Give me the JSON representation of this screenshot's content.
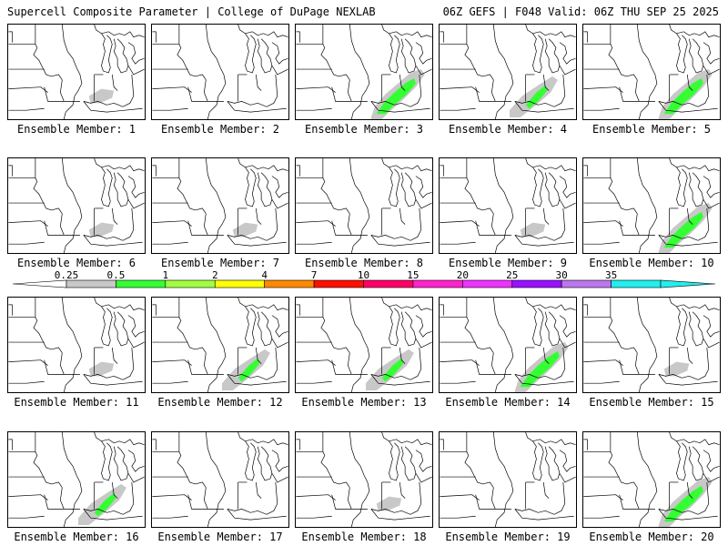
{
  "header": {
    "left": "Supercell Composite Parameter | College of DuPage NEXLAB",
    "right": "06Z GEFS | F048 Valid: 06Z THU SEP 25 2025"
  },
  "colors": {
    "line": "#000000",
    "gray_fill": "#c8c8c8",
    "green_fill": "#33ff33"
  },
  "colorbar": {
    "labels": [
      "0.25",
      "0.5",
      "1",
      "2",
      "4",
      "7",
      "10",
      "15",
      "20",
      "25",
      "30",
      "35"
    ],
    "colors": [
      "#c8c8c8",
      "#33ff33",
      "#a0ff40",
      "#ffff00",
      "#ff8800",
      "#ff1100",
      "#ff0066",
      "#ff22cc",
      "#ee33ff",
      "#9911ff",
      "#bb77ee",
      "#22eeee"
    ]
  },
  "panels": [
    {
      "label": "Ensemble Member: 1",
      "icon": "map-member-1",
      "intensity": "weak"
    },
    {
      "label": "Ensemble Member: 2",
      "icon": "map-member-2",
      "intensity": "none"
    },
    {
      "label": "Ensemble Member: 3",
      "icon": "map-member-3",
      "intensity": "strong"
    },
    {
      "label": "Ensemble Member: 4",
      "icon": "map-member-4",
      "intensity": "moderate"
    },
    {
      "label": "Ensemble Member: 5",
      "icon": "map-member-5",
      "intensity": "strong"
    },
    {
      "label": "Ensemble Member: 6",
      "icon": "map-member-6",
      "intensity": "weak"
    },
    {
      "label": "Ensemble Member: 7",
      "icon": "map-member-7",
      "intensity": "weak"
    },
    {
      "label": "Ensemble Member: 8",
      "icon": "map-member-8",
      "intensity": "none"
    },
    {
      "label": "Ensemble Member: 9",
      "icon": "map-member-9",
      "intensity": "weak"
    },
    {
      "label": "Ensemble Member: 10",
      "icon": "map-member-10",
      "intensity": "strong"
    },
    {
      "label": "Ensemble Member: 11",
      "icon": "map-member-11",
      "intensity": "weak"
    },
    {
      "label": "Ensemble Member: 12",
      "icon": "map-member-12",
      "intensity": "moderate"
    },
    {
      "label": "Ensemble Member: 13",
      "icon": "map-member-13",
      "intensity": "moderate"
    },
    {
      "label": "Ensemble Member: 14",
      "icon": "map-member-14",
      "intensity": "strong"
    },
    {
      "label": "Ensemble Member: 15",
      "icon": "map-member-15",
      "intensity": "weak"
    },
    {
      "label": "Ensemble Member: 16",
      "icon": "map-member-16",
      "intensity": "moderate"
    },
    {
      "label": "Ensemble Member: 17",
      "icon": "map-member-17",
      "intensity": "none"
    },
    {
      "label": "Ensemble Member: 18",
      "icon": "map-member-18",
      "intensity": "weak"
    },
    {
      "label": "Ensemble Member: 19",
      "icon": "map-member-19",
      "intensity": "none"
    },
    {
      "label": "Ensemble Member: 20",
      "icon": "map-member-20",
      "intensity": "strong"
    }
  ]
}
